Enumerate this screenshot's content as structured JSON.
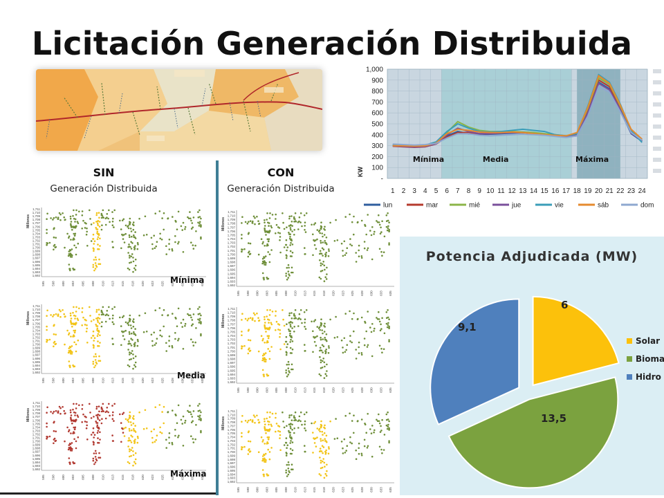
{
  "slide": {
    "title": "Licitación Generación Distribuida",
    "sin_title": "SIN",
    "sin_subtitle": "Generación Distribuida",
    "con_title": "CON",
    "con_subtitle": "Generación Distribuida",
    "panel_labels": [
      "Mínima",
      "Media",
      "Máxima"
    ],
    "panel_ylabel": "Millones",
    "panel_yticks": [
      "1,711",
      "1,710",
      "1,709",
      "1,708",
      "1,707",
      "1,706",
      "1,705",
      "1,704",
      "1,703",
      "1,702",
      "1,701",
      "1,700",
      "1,699",
      "1,698",
      "1,697",
      "1,696",
      "1,695",
      "1,694",
      "1,693",
      "1,692"
    ],
    "panel_xticks": [
      "595",
      "598",
      "600",
      "603",
      "605",
      "608",
      "610",
      "613",
      "615",
      "618",
      "620",
      "623",
      "625",
      "628",
      "630",
      "633",
      "635"
    ]
  },
  "colors": {
    "green": "#6f8f3a",
    "yellow": "#f2c418",
    "red": "#b23a32",
    "divider": "#3f7e95"
  },
  "chart_data": [
    {
      "type": "line",
      "x": [
        1,
        2,
        3,
        4,
        5,
        6,
        7,
        8,
        9,
        10,
        11,
        12,
        13,
        14,
        15,
        16,
        17,
        18,
        19,
        20,
        21,
        22,
        23,
        24
      ],
      "ylim": [
        0,
        1000
      ],
      "yticks": [
        "1,000",
        "900",
        "800",
        "700",
        "600",
        "500",
        "400",
        "300",
        "200",
        "100",
        "-"
      ],
      "ylabel": "KW",
      "bands": [
        "Mínima",
        "Media",
        "Máxima"
      ],
      "series": [
        {
          "name": "lun",
          "color": "#2f5e9e",
          "values": [
            300,
            295,
            290,
            295,
            320,
            390,
            430,
            410,
            400,
            405,
            410,
            415,
            420,
            410,
            400,
            390,
            380,
            390,
            600,
            880,
            820,
            620,
            410,
            340
          ]
        },
        {
          "name": "mar",
          "color": "#b53a2d",
          "values": [
            295,
            290,
            285,
            290,
            315,
            380,
            420,
            420,
            410,
            410,
            415,
            420,
            420,
            410,
            400,
            390,
            385,
            400,
            620,
            900,
            840,
            640,
            420,
            350
          ]
        },
        {
          "name": "mié",
          "color": "#8bb548",
          "values": [
            305,
            300,
            298,
            300,
            330,
            420,
            520,
            470,
            440,
            430,
            430,
            430,
            425,
            420,
            410,
            400,
            390,
            410,
            640,
            920,
            860,
            660,
            430,
            360
          ]
        },
        {
          "name": "jue",
          "color": "#7a4f9b",
          "values": [
            298,
            292,
            288,
            292,
            318,
            400,
            460,
            430,
            410,
            410,
            415,
            420,
            420,
            410,
            400,
            390,
            380,
            395,
            600,
            870,
            810,
            630,
            415,
            345
          ]
        },
        {
          "name": "vie",
          "color": "#3a9db8",
          "values": [
            310,
            305,
            300,
            305,
            335,
            430,
            500,
            460,
            430,
            425,
            430,
            440,
            450,
            440,
            430,
            400,
            390,
            410,
            660,
            950,
            880,
            680,
            440,
            330
          ]
        },
        {
          "name": "sáb",
          "color": "#e58a2e",
          "values": [
            300,
            298,
            296,
            298,
            325,
            410,
            450,
            440,
            425,
            420,
            420,
            425,
            420,
            410,
            400,
            395,
            390,
            420,
            650,
            940,
            870,
            670,
            450,
            360
          ]
        },
        {
          "name": "dom",
          "color": "#8ea8d0",
          "values": [
            315,
            310,
            305,
            310,
            320,
            370,
            410,
            410,
            395,
            390,
            395,
            400,
            405,
            400,
            395,
            385,
            375,
            390,
            570,
            840,
            790,
            610,
            420,
            350
          ]
        }
      ]
    },
    {
      "type": "pie",
      "title": "Potencia Adjudicada (MW)",
      "categories": [
        "Solar",
        "Biomasa",
        "Hidro"
      ],
      "values": [
        6,
        13.5,
        9.1
      ],
      "labels": [
        "6",
        "13,5",
        "9,1"
      ],
      "colors": [
        "#fcc10b",
        "#7ba23f",
        "#4f80bd"
      ],
      "legend": "right"
    }
  ]
}
